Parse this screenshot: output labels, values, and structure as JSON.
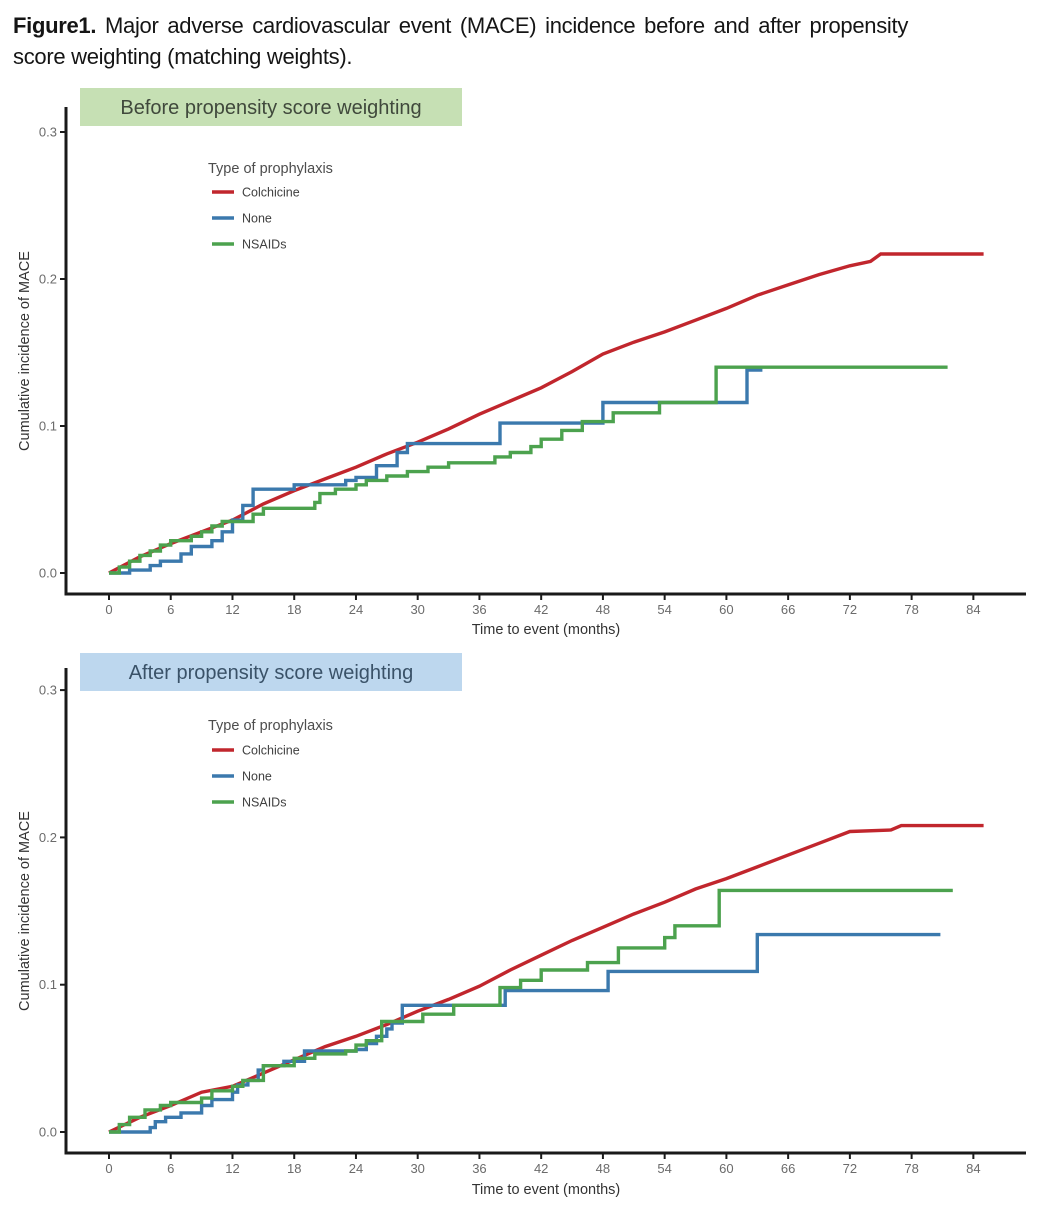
{
  "caption": {
    "bold": "Figure1.",
    "line1": " Major adverse cardiovascular event (MACE) incidence before and after propensity",
    "line2": "score weighting (matching weights)."
  },
  "colors": {
    "colchicine": "#c1262d",
    "none": "#3b79ad",
    "nsaids": "#4ca24e",
    "header_before_bg": "#c6e0b4",
    "header_before_text": "#40493c",
    "header_after_bg": "#bdd7ee",
    "header_after_text": "#3a5268",
    "axis_line": "#1a1a1a",
    "tick_label": "#6b6b6b",
    "axis_title": "#333333"
  },
  "legend": {
    "title": "Type of prophylaxis",
    "entries": [
      "Colchicine",
      "None",
      "NSAIDs"
    ]
  },
  "axes": {
    "x_title": "Time to event (months)",
    "y_title": "Cumulative incidence of MACE",
    "x_ticks": [
      0,
      6,
      12,
      18,
      24,
      30,
      36,
      42,
      48,
      54,
      60,
      66,
      72,
      78,
      84
    ],
    "y_ticks": [
      "0.0",
      "0.1",
      "0.2",
      "0.3"
    ],
    "x_range": [
      0,
      89
    ],
    "y_range": [
      0,
      0.315
    ],
    "grid": false,
    "legend_position": "top-left-inside"
  },
  "chart_data": [
    {
      "type": "line",
      "subtype": "cumulative-incidence-step",
      "title": "Before propensity score weighting",
      "xlabel": "Time to event (months)",
      "ylabel": "Cumulative incidence of MACE",
      "xlim": [
        0,
        89
      ],
      "ylim": [
        0,
        0.315
      ],
      "series": [
        {
          "name": "Colchicine",
          "color": "#c1262d",
          "stepped": false,
          "points": [
            [
              0,
              0
            ],
            [
              3,
              0.011
            ],
            [
              6,
              0.02
            ],
            [
              9,
              0.028
            ],
            [
              12,
              0.036
            ],
            [
              15,
              0.047
            ],
            [
              18,
              0.056
            ],
            [
              21,
              0.064
            ],
            [
              24,
              0.072
            ],
            [
              27,
              0.081
            ],
            [
              30,
              0.089
            ],
            [
              33,
              0.098
            ],
            [
              36,
              0.108
            ],
            [
              39,
              0.117
            ],
            [
              42,
              0.126
            ],
            [
              45,
              0.137
            ],
            [
              48,
              0.149
            ],
            [
              51,
              0.157
            ],
            [
              54,
              0.164
            ],
            [
              57,
              0.172
            ],
            [
              60,
              0.18
            ],
            [
              63,
              0.189
            ],
            [
              66,
              0.196
            ],
            [
              69,
              0.203
            ],
            [
              72,
              0.209
            ],
            [
              74,
              0.212
            ],
            [
              75,
              0.217
            ],
            [
              85,
              0.217
            ]
          ]
        },
        {
          "name": "None",
          "color": "#3b79ad",
          "stepped": true,
          "points": [
            [
              0,
              0
            ],
            [
              2,
              0.002
            ],
            [
              4,
              0.005
            ],
            [
              5,
              0.008
            ],
            [
              7,
              0.013
            ],
            [
              8,
              0.018
            ],
            [
              10,
              0.022
            ],
            [
              11,
              0.028
            ],
            [
              12,
              0.036
            ],
            [
              13,
              0.046
            ],
            [
              14,
              0.057
            ],
            [
              18,
              0.06
            ],
            [
              23,
              0.063
            ],
            [
              24,
              0.065
            ],
            [
              26,
              0.073
            ],
            [
              28,
              0.082
            ],
            [
              29,
              0.088
            ],
            [
              38,
              0.102
            ],
            [
              48,
              0.116
            ],
            [
              62,
              0.138
            ],
            [
              63.5,
              0.138
            ]
          ]
        },
        {
          "name": "NSAIDs",
          "color": "#4ca24e",
          "stepped": true,
          "points": [
            [
              0,
              0
            ],
            [
              1,
              0.004
            ],
            [
              2,
              0.008
            ],
            [
              3,
              0.012
            ],
            [
              4,
              0.015
            ],
            [
              5,
              0.019
            ],
            [
              6,
              0.022
            ],
            [
              8,
              0.025
            ],
            [
              9,
              0.028
            ],
            [
              10,
              0.032
            ],
            [
              11,
              0.035
            ],
            [
              14,
              0.04
            ],
            [
              15,
              0.044
            ],
            [
              20,
              0.048
            ],
            [
              20.5,
              0.054
            ],
            [
              22,
              0.057
            ],
            [
              24,
              0.06
            ],
            [
              25,
              0.063
            ],
            [
              27,
              0.066
            ],
            [
              29,
              0.069
            ],
            [
              31,
              0.072
            ],
            [
              33,
              0.075
            ],
            [
              37.5,
              0.079
            ],
            [
              39,
              0.082
            ],
            [
              41,
              0.086
            ],
            [
              42,
              0.091
            ],
            [
              44,
              0.097
            ],
            [
              46,
              0.103
            ],
            [
              49,
              0.109
            ],
            [
              53.5,
              0.116
            ],
            [
              59,
              0.14
            ],
            [
              81.5,
              0.14
            ]
          ]
        }
      ]
    },
    {
      "type": "line",
      "subtype": "cumulative-incidence-step",
      "title": "After propensity score weighting",
      "xlabel": "Time to event (months)",
      "ylabel": "Cumulative incidence of MACE",
      "xlim": [
        0,
        89
      ],
      "ylim": [
        0,
        0.315
      ],
      "series": [
        {
          "name": "Colchicine",
          "color": "#c1262d",
          "stepped": false,
          "points": [
            [
              0,
              0
            ],
            [
              3,
              0.01
            ],
            [
              6,
              0.018
            ],
            [
              9,
              0.027
            ],
            [
              12,
              0.031
            ],
            [
              15,
              0.04
            ],
            [
              18,
              0.049
            ],
            [
              21,
              0.058
            ],
            [
              24,
              0.065
            ],
            [
              27,
              0.073
            ],
            [
              30,
              0.082
            ],
            [
              33,
              0.09
            ],
            [
              36,
              0.099
            ],
            [
              39,
              0.11
            ],
            [
              42,
              0.12
            ],
            [
              45,
              0.13
            ],
            [
              48,
              0.139
            ],
            [
              51,
              0.148
            ],
            [
              54,
              0.156
            ],
            [
              57,
              0.165
            ],
            [
              60,
              0.172
            ],
            [
              63,
              0.18
            ],
            [
              66,
              0.188
            ],
            [
              69,
              0.196
            ],
            [
              72,
              0.204
            ],
            [
              76,
              0.205
            ],
            [
              77,
              0.208
            ],
            [
              85,
              0.208
            ]
          ]
        },
        {
          "name": "None",
          "color": "#3b79ad",
          "stepped": true,
          "points": [
            [
              0,
              0
            ],
            [
              4,
              0.003
            ],
            [
              4.5,
              0.007
            ],
            [
              5.5,
              0.01
            ],
            [
              7,
              0.013
            ],
            [
              9,
              0.018
            ],
            [
              10,
              0.022
            ],
            [
              12,
              0.027
            ],
            [
              12.5,
              0.032
            ],
            [
              13.5,
              0.035
            ],
            [
              14.5,
              0.042
            ],
            [
              15,
              0.045
            ],
            [
              17,
              0.048
            ],
            [
              19,
              0.055
            ],
            [
              24,
              0.056
            ],
            [
              25,
              0.06
            ],
            [
              26,
              0.065
            ],
            [
              27,
              0.07
            ],
            [
              27.5,
              0.074
            ],
            [
              28.5,
              0.086
            ],
            [
              38.5,
              0.096
            ],
            [
              48.5,
              0.109
            ],
            [
              63,
              0.134
            ],
            [
              80.8,
              0.134
            ]
          ]
        },
        {
          "name": "NSAIDs",
          "color": "#4ca24e",
          "stepped": true,
          "points": [
            [
              0,
              0
            ],
            [
              1,
              0.005
            ],
            [
              2,
              0.01
            ],
            [
              3.5,
              0.015
            ],
            [
              5,
              0.018
            ],
            [
              6,
              0.02
            ],
            [
              9,
              0.023
            ],
            [
              10,
              0.028
            ],
            [
              12,
              0.031
            ],
            [
              13,
              0.035
            ],
            [
              15,
              0.045
            ],
            [
              18,
              0.05
            ],
            [
              20,
              0.053
            ],
            [
              23,
              0.055
            ],
            [
              24,
              0.059
            ],
            [
              25,
              0.062
            ],
            [
              26.5,
              0.075
            ],
            [
              30.5,
              0.08
            ],
            [
              33.5,
              0.086
            ],
            [
              38,
              0.098
            ],
            [
              40,
              0.103
            ],
            [
              42,
              0.11
            ],
            [
              46.5,
              0.115
            ],
            [
              49.5,
              0.125
            ],
            [
              54,
              0.132
            ],
            [
              55,
              0.14
            ],
            [
              59.3,
              0.164
            ],
            [
              82,
              0.164
            ]
          ]
        }
      ]
    }
  ],
  "panels": [
    {
      "header": "Before propensity score weighting",
      "header_bg": "#c6e0b4",
      "header_text_color": "#40493c"
    },
    {
      "header": "After propensity score weighting",
      "header_bg": "#bdd7ee",
      "header_text_color": "#3a5268"
    }
  ]
}
